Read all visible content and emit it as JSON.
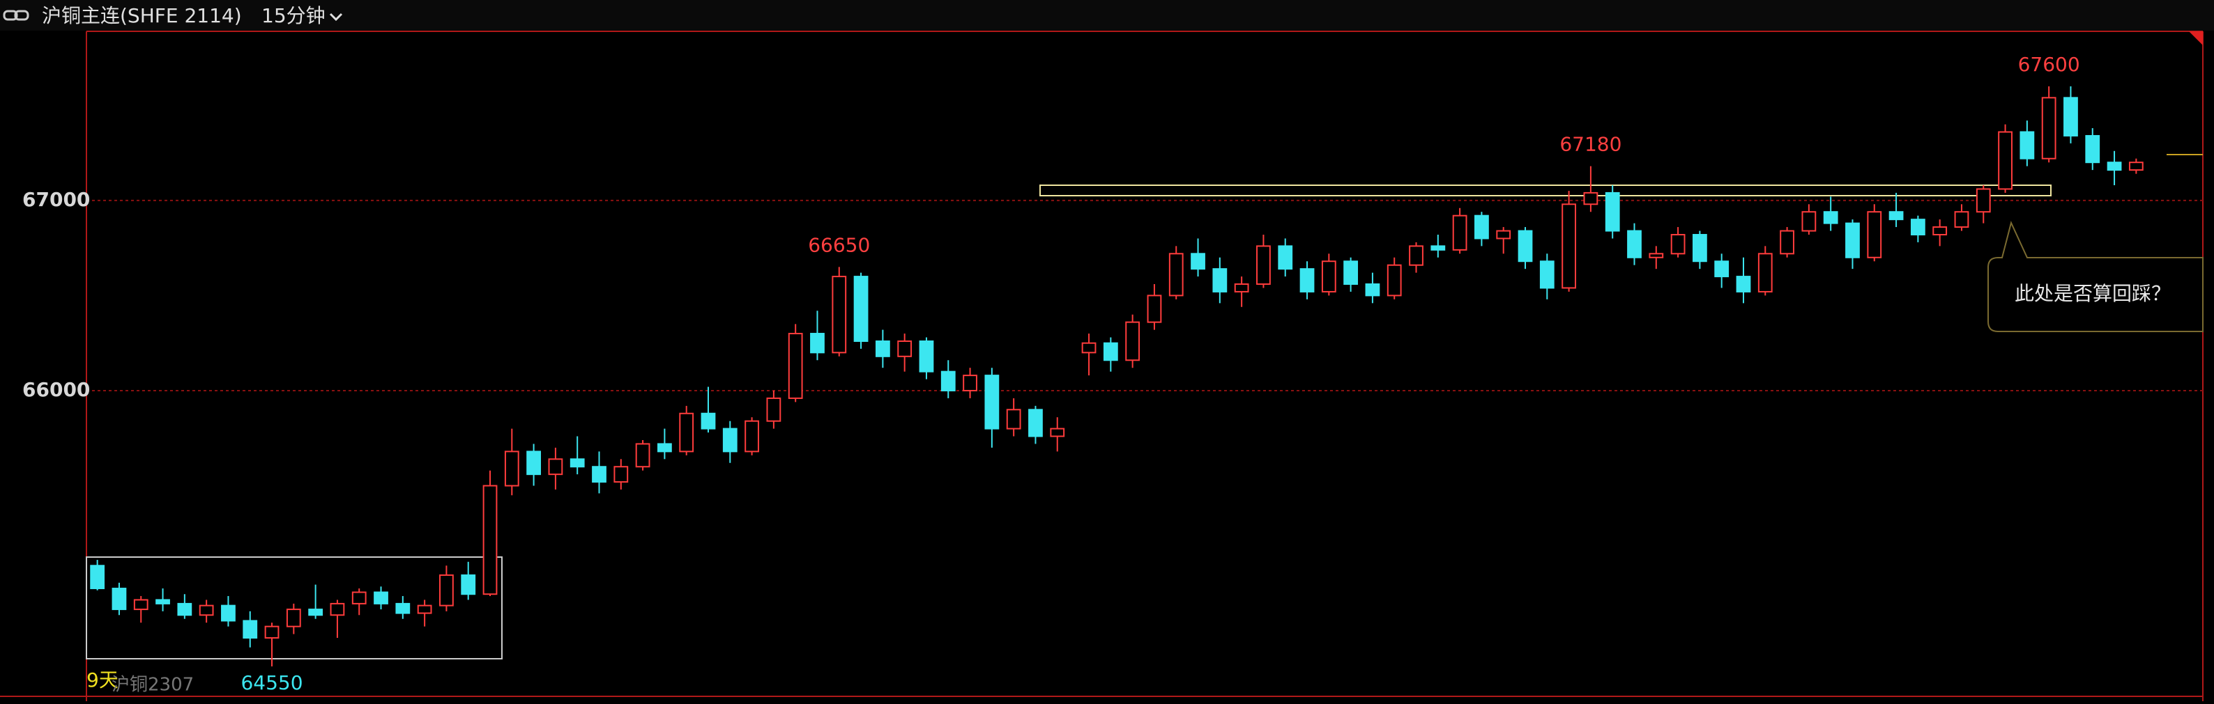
{
  "header": {
    "title": "沪铜主连(SHFE 2114)",
    "period": "15分钟"
  },
  "chart_data": {
    "type": "candlestick",
    "ylim": [
      64400,
      67900
    ],
    "yticks": [
      66000,
      67000
    ],
    "grid": true,
    "up_color": "#ff3c3c",
    "down_color": "#3ce6f0",
    "candles": [
      [
        65080,
        65110,
        64950,
        64960
      ],
      [
        64960,
        64990,
        64820,
        64850
      ],
      [
        64850,
        64920,
        64780,
        64900
      ],
      [
        64900,
        64960,
        64840,
        64880
      ],
      [
        64880,
        64930,
        64800,
        64820
      ],
      [
        64820,
        64900,
        64780,
        64870
      ],
      [
        64870,
        64920,
        64760,
        64790
      ],
      [
        64790,
        64840,
        64650,
        64700
      ],
      [
        64700,
        64780,
        64550,
        64760
      ],
      [
        64760,
        64880,
        64720,
        64850
      ],
      [
        64850,
        64980,
        64800,
        64820
      ],
      [
        64820,
        64900,
        64700,
        64880
      ],
      [
        64880,
        64960,
        64820,
        64940
      ],
      [
        64940,
        64970,
        64850,
        64880
      ],
      [
        64880,
        64920,
        64800,
        64830
      ],
      [
        64830,
        64900,
        64760,
        64870
      ],
      [
        64870,
        65080,
        64840,
        65030
      ],
      [
        65030,
        65100,
        64900,
        64930
      ],
      [
        64930,
        65580,
        64920,
        65500
      ],
      [
        65500,
        65800,
        65450,
        65680
      ],
      [
        65680,
        65720,
        65500,
        65560
      ],
      [
        65560,
        65700,
        65480,
        65640
      ],
      [
        65640,
        65760,
        65560,
        65600
      ],
      [
        65600,
        65680,
        65460,
        65520
      ],
      [
        65520,
        65640,
        65480,
        65600
      ],
      [
        65600,
        65740,
        65580,
        65720
      ],
      [
        65720,
        65800,
        65640,
        65680
      ],
      [
        65680,
        65920,
        65660,
        65880
      ],
      [
        65880,
        66020,
        65780,
        65800
      ],
      [
        65800,
        65840,
        65620,
        65680
      ],
      [
        65680,
        65860,
        65660,
        65840
      ],
      [
        65840,
        66000,
        65800,
        65960
      ],
      [
        65960,
        66350,
        65940,
        66300
      ],
      [
        66300,
        66420,
        66160,
        66200
      ],
      [
        66200,
        66650,
        66180,
        66600
      ],
      [
        66600,
        66620,
        66220,
        66260
      ],
      [
        66260,
        66320,
        66120,
        66180
      ],
      [
        66180,
        66300,
        66100,
        66260
      ],
      [
        66260,
        66280,
        66060,
        66100
      ],
      [
        66100,
        66160,
        65960,
        66000
      ],
      [
        66000,
        66120,
        65960,
        66080
      ],
      [
        66080,
        66120,
        65700,
        65800
      ],
      [
        65800,
        65960,
        65760,
        65900
      ],
      [
        65900,
        65920,
        65720,
        65760
      ],
      [
        65760,
        65860,
        65680,
        65800
      ],
      [
        66200,
        66300,
        66080,
        66250
      ],
      [
        66250,
        66280,
        66100,
        66160
      ],
      [
        66160,
        66400,
        66120,
        66360
      ],
      [
        66360,
        66560,
        66320,
        66500
      ],
      [
        66500,
        66760,
        66480,
        66720
      ],
      [
        66720,
        66800,
        66600,
        66640
      ],
      [
        66640,
        66700,
        66460,
        66520
      ],
      [
        66520,
        66600,
        66440,
        66560
      ],
      [
        66560,
        66820,
        66540,
        66760
      ],
      [
        66760,
        66800,
        66600,
        66640
      ],
      [
        66640,
        66680,
        66480,
        66520
      ],
      [
        66520,
        66720,
        66500,
        66680
      ],
      [
        66680,
        66700,
        66520,
        66560
      ],
      [
        66560,
        66620,
        66460,
        66500
      ],
      [
        66500,
        66700,
        66480,
        66660
      ],
      [
        66660,
        66780,
        66620,
        66760
      ],
      [
        66760,
        66820,
        66700,
        66740
      ],
      [
        66740,
        66960,
        66720,
        66920
      ],
      [
        66920,
        66940,
        66760,
        66800
      ],
      [
        66800,
        66860,
        66720,
        66840
      ],
      [
        66840,
        66860,
        66640,
        66680
      ],
      [
        66680,
        66720,
        66480,
        66540
      ],
      [
        66540,
        67050,
        66520,
        66980
      ],
      [
        66980,
        67180,
        66940,
        67040
      ],
      [
        67040,
        67080,
        66800,
        66840
      ],
      [
        66840,
        66880,
        66660,
        66700
      ],
      [
        66700,
        66760,
        66640,
        66720
      ],
      [
        66720,
        66860,
        66700,
        66820
      ],
      [
        66820,
        66840,
        66640,
        66680
      ],
      [
        66680,
        66720,
        66540,
        66600
      ],
      [
        66600,
        66700,
        66460,
        66520
      ],
      [
        66520,
        66760,
        66500,
        66720
      ],
      [
        66720,
        66860,
        66700,
        66840
      ],
      [
        66840,
        66980,
        66820,
        66940
      ],
      [
        66940,
        67020,
        66840,
        66880
      ],
      [
        66880,
        66900,
        66640,
        66700
      ],
      [
        66700,
        66980,
        66680,
        66940
      ],
      [
        66940,
        67040,
        66860,
        66900
      ],
      [
        66900,
        66920,
        66780,
        66820
      ],
      [
        66820,
        66900,
        66760,
        66860
      ],
      [
        66860,
        66980,
        66840,
        66940
      ],
      [
        66940,
        67080,
        66880,
        67060
      ],
      [
        67060,
        67400,
        67040,
        67360
      ],
      [
        67360,
        67420,
        67180,
        67220
      ],
      [
        67220,
        67600,
        67200,
        67540
      ],
      [
        67540,
        67600,
        67300,
        67340
      ],
      [
        67340,
        67380,
        67160,
        67200
      ],
      [
        67200,
        67260,
        67080,
        67160
      ],
      [
        67160,
        67220,
        67140,
        67200
      ]
    ],
    "high_labels": [
      66650,
      67180,
      67600
    ],
    "low_labels": [
      64550
    ],
    "note": "此处是否算回踩？",
    "footer_left": "9天",
    "footer_contract": "沪铜2307"
  }
}
